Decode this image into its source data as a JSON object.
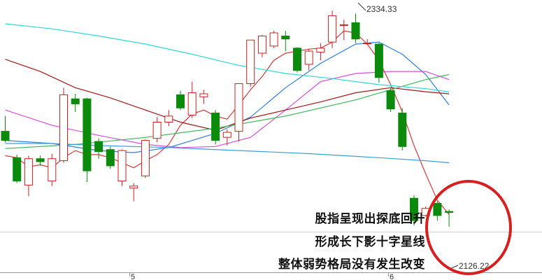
{
  "chart_data": {
    "type": "candlestick",
    "title": "",
    "ylim": [
      2080,
      2345
    ],
    "x_ticks": [
      "5",
      "6"
    ],
    "high_label": "2334.33",
    "low_label": "2126.22",
    "up_color": "#d02020",
    "down_color": "#0b8a0b",
    "annotations": [
      "股指呈现出探底回升",
      "形成长下影十字星线",
      "整体弱势格局没有发生改变"
    ],
    "candles": [
      {
        "o": 2219,
        "h": 2234,
        "l": 2208,
        "c": 2210
      },
      {
        "o": 2193,
        "h": 2196,
        "l": 2168,
        "c": 2170
      },
      {
        "o": 2166,
        "h": 2195,
        "l": 2155,
        "c": 2192
      },
      {
        "o": 2192,
        "h": 2195,
        "l": 2185,
        "c": 2189
      },
      {
        "o": 2170,
        "h": 2197,
        "l": 2165,
        "c": 2192
      },
      {
        "o": 2190,
        "h": 2262,
        "l": 2188,
        "c": 2255
      },
      {
        "o": 2251,
        "h": 2256,
        "l": 2238,
        "c": 2246
      },
      {
        "o": 2251,
        "h": 2252,
        "l": 2169,
        "c": 2180
      },
      {
        "o": 2209,
        "h": 2212,
        "l": 2192,
        "c": 2199
      },
      {
        "o": 2201,
        "h": 2204,
        "l": 2182,
        "c": 2185
      },
      {
        "o": 2170,
        "h": 2201,
        "l": 2165,
        "c": 2200
      },
      {
        "o": 2163,
        "h": 2168,
        "l": 2150,
        "c": 2165
      },
      {
        "o": 2175,
        "h": 2211,
        "l": 2173,
        "c": 2210
      },
      {
        "o": 2212,
        "h": 2233,
        "l": 2208,
        "c": 2228
      },
      {
        "o": 2228,
        "h": 2240,
        "l": 2224,
        "c": 2234
      },
      {
        "o": 2255,
        "h": 2259,
        "l": 2240,
        "c": 2242
      },
      {
        "o": 2235,
        "h": 2268,
        "l": 2232,
        "c": 2257
      },
      {
        "o": 2253,
        "h": 2260,
        "l": 2246,
        "c": 2256
      },
      {
        "o": 2237,
        "h": 2240,
        "l": 2206,
        "c": 2210
      },
      {
        "o": 2213,
        "h": 2221,
        "l": 2205,
        "c": 2218
      },
      {
        "o": 2219,
        "h": 2266,
        "l": 2209,
        "c": 2266
      },
      {
        "o": 2266,
        "h": 2309,
        "l": 2263,
        "c": 2309
      },
      {
        "o": 2296,
        "h": 2314,
        "l": 2292,
        "c": 2313
      },
      {
        "o": 2303,
        "h": 2318,
        "l": 2301,
        "c": 2316
      },
      {
        "o": 2313,
        "h": 2318,
        "l": 2298,
        "c": 2310
      },
      {
        "o": 2301,
        "h": 2302,
        "l": 2277,
        "c": 2279
      },
      {
        "o": 2285,
        "h": 2300,
        "l": 2279,
        "c": 2298
      },
      {
        "o": 2297,
        "h": 2306,
        "l": 2289,
        "c": 2301
      },
      {
        "o": 2307,
        "h": 2338,
        "l": 2301,
        "c": 2333
      },
      {
        "o": 2324,
        "h": 2329,
        "l": 2309,
        "c": 2324
      },
      {
        "o": 2326,
        "h": 2335,
        "l": 2306,
        "c": 2310
      },
      {
        "o": 2306,
        "h": 2310,
        "l": 2304,
        "c": 2306
      },
      {
        "o": 2305,
        "h": 2306,
        "l": 2267,
        "c": 2272
      },
      {
        "o": 2259,
        "h": 2262,
        "l": 2238,
        "c": 2241
      },
      {
        "o": 2237,
        "h": 2242,
        "l": 2200,
        "c": 2204
      },
      {
        "o": 2153,
        "h": 2156,
        "l": 2126,
        "c": 2131
      },
      {
        "o": 2136,
        "h": 2145,
        "l": 2135,
        "c": 2143
      },
      {
        "o": 2148,
        "h": 2150,
        "l": 2131,
        "c": 2136
      },
      {
        "o": 2140,
        "h": 2142,
        "l": 2125,
        "c": 2139
      }
    ],
    "series": [
      {
        "color": "#d43a3a",
        "values": [
          [
            0,
            2195
          ],
          [
            1,
            2193
          ],
          [
            2,
            2184
          ],
          [
            3,
            2186
          ],
          [
            4,
            2183
          ],
          [
            5,
            2193
          ],
          [
            6,
            2200
          ],
          [
            7,
            2196
          ],
          [
            8,
            2196
          ],
          [
            9,
            2193
          ],
          [
            10,
            2188
          ],
          [
            11,
            2183
          ],
          [
            12,
            2190
          ],
          [
            13,
            2196
          ],
          [
            14,
            2206
          ],
          [
            15,
            2225
          ],
          [
            16,
            2236
          ],
          [
            17,
            2240
          ],
          [
            18,
            2234
          ],
          [
            19,
            2231
          ],
          [
            20,
            2245
          ],
          [
            21,
            2260
          ],
          [
            22,
            2273
          ],
          [
            23,
            2289
          ],
          [
            24,
            2296
          ],
          [
            25,
            2298
          ],
          [
            26,
            2300
          ],
          [
            27,
            2301
          ],
          [
            28,
            2307
          ],
          [
            29,
            2318
          ],
          [
            30,
            2316
          ],
          [
            31,
            2305
          ],
          [
            32,
            2289
          ],
          [
            33,
            2265
          ],
          [
            34,
            2238
          ],
          [
            35,
            2205
          ],
          [
            36,
            2177
          ],
          [
            37,
            2151
          ],
          [
            38,
            2137
          ]
        ]
      },
      {
        "color": "#2f7fe0",
        "values": [
          [
            0,
            2210
          ],
          [
            4,
            2207
          ],
          [
            8,
            2200
          ],
          [
            11,
            2198
          ],
          [
            14,
            2203
          ],
          [
            18,
            2217
          ],
          [
            21,
            2233
          ],
          [
            24,
            2262
          ],
          [
            27,
            2286
          ],
          [
            30,
            2305
          ],
          [
            32,
            2307
          ],
          [
            34,
            2295
          ],
          [
            36,
            2275
          ],
          [
            38,
            2245
          ]
        ]
      },
      {
        "color": "#d84fd8",
        "values": [
          [
            0,
            2240
          ],
          [
            4,
            2225
          ],
          [
            8,
            2215
          ],
          [
            12,
            2206
          ],
          [
            15,
            2203
          ],
          [
            18,
            2204
          ],
          [
            21,
            2213
          ],
          [
            24,
            2240
          ],
          [
            27,
            2268
          ],
          [
            30,
            2276
          ],
          [
            33,
            2278
          ],
          [
            36,
            2278
          ],
          [
            38,
            2270
          ]
        ]
      },
      {
        "color": "#a01818",
        "values": [
          [
            0,
            2290
          ],
          [
            3,
            2278
          ],
          [
            6,
            2262
          ],
          [
            9,
            2252
          ],
          [
            12,
            2240
          ],
          [
            15,
            2228
          ],
          [
            18,
            2220
          ],
          [
            21,
            2232
          ],
          [
            24,
            2240
          ],
          [
            27,
            2248
          ],
          [
            30,
            2257
          ],
          [
            33,
            2262
          ],
          [
            36,
            2258
          ],
          [
            38,
            2256
          ]
        ]
      },
      {
        "color": "#3cb85a",
        "values": [
          [
            0,
            2202
          ],
          [
            6,
            2206
          ],
          [
            12,
            2213
          ],
          [
            18,
            2222
          ],
          [
            24,
            2234
          ],
          [
            30,
            2250
          ],
          [
            36,
            2270
          ],
          [
            38,
            2275
          ]
        ]
      },
      {
        "color": "#3aa0dc",
        "values": [
          [
            0,
            2207
          ],
          [
            4,
            2207
          ],
          [
            8,
            2205
          ],
          [
            14,
            2203
          ],
          [
            20,
            2200
          ],
          [
            26,
            2197
          ],
          [
            32,
            2193
          ],
          [
            36,
            2190
          ],
          [
            38,
            2188
          ]
        ]
      },
      {
        "color": "#30d8d8",
        "values": [
          [
            0,
            2325
          ],
          [
            4,
            2320
          ],
          [
            8,
            2313
          ],
          [
            12,
            2305
          ],
          [
            16,
            2295
          ],
          [
            20,
            2284
          ],
          [
            24,
            2276
          ],
          [
            28,
            2271
          ],
          [
            32,
            2265
          ],
          [
            36,
            2261
          ],
          [
            38,
            2258
          ]
        ]
      }
    ]
  },
  "ellipse_color": "#d61f1f"
}
